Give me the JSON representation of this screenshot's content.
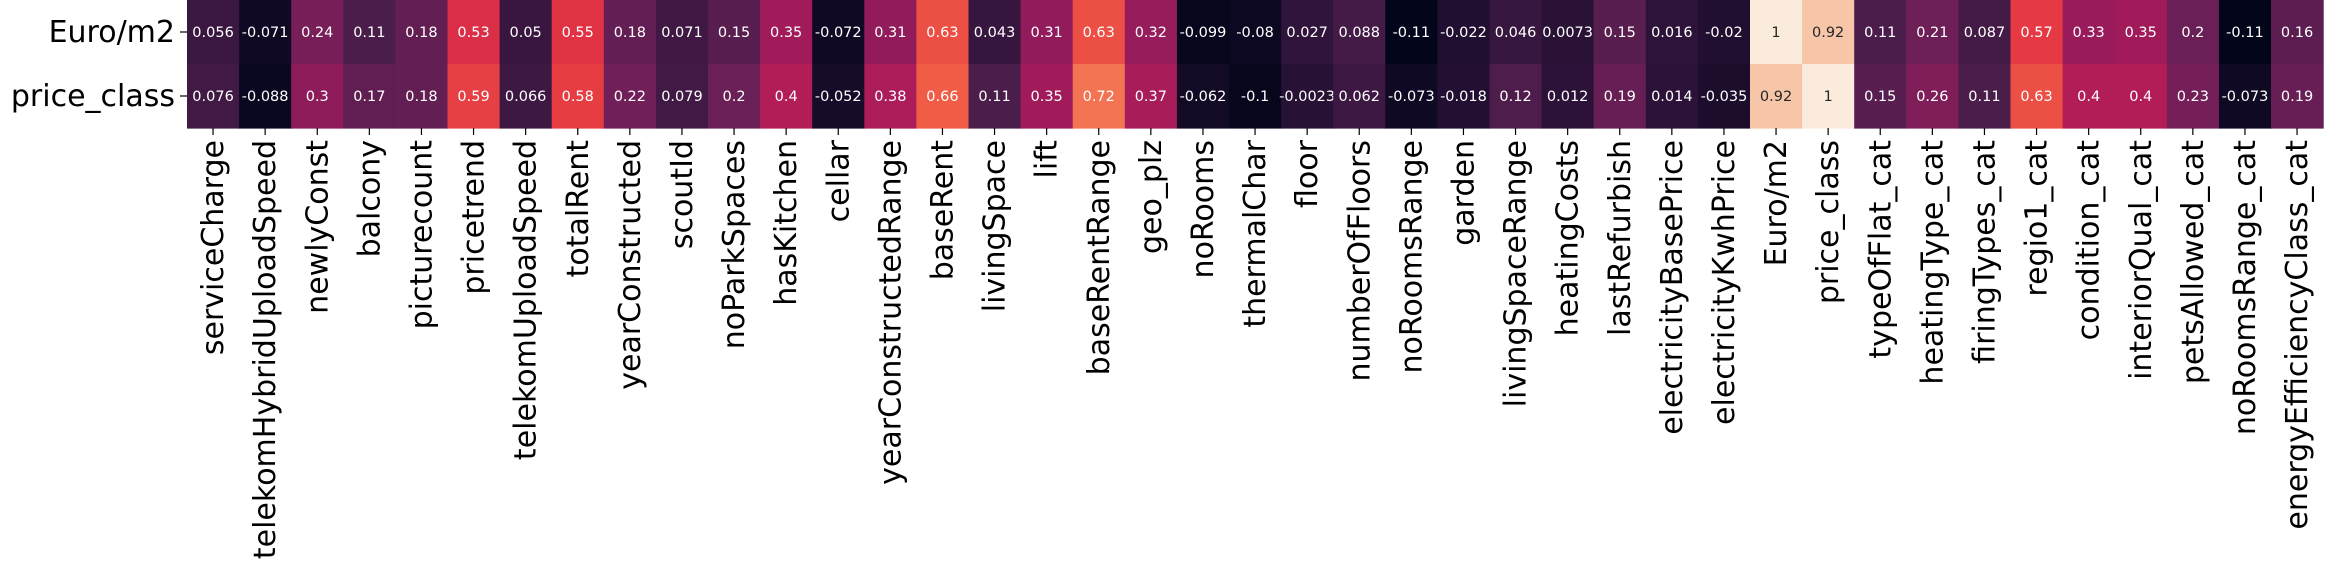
{
  "chart_data": {
    "type": "heatmap",
    "title": "",
    "xlabel": "",
    "ylabel": "",
    "colormap": "rocket",
    "vmin": -0.11,
    "vmax": 1.0,
    "rows": [
      "Euro/m2",
      "price_class"
    ],
    "columns": [
      "serviceCharge",
      "telekomHybridUploadSpeed",
      "newlyConst",
      "balcony",
      "picturecount",
      "pricetrend",
      "telekomUploadSpeed",
      "totalRent",
      "yearConstructed",
      "scoutId",
      "noParkSpaces",
      "hasKitchen",
      "cellar",
      "yearConstructedRange",
      "baseRent",
      "livingSpace",
      "lift",
      "baseRentRange",
      "geo_plz",
      "noRooms",
      "thermalChar",
      "floor",
      "numberOfFloors",
      "noRoomsRange",
      "garden",
      "livingSpaceRange",
      "heatingCosts",
      "lastRefurbish",
      "electricityBasePrice",
      "electricityKwhPrice",
      "Euro/m2",
      "price_class",
      "typeOfFlat_cat",
      "heatingType_cat",
      "firingTypes_cat",
      "regio1_cat",
      "condition_cat",
      "interiorQual_cat",
      "petsAllowed_cat",
      "noRoomsRange_cat",
      "energyEfficiencyClass_cat"
    ],
    "values": [
      [
        0.056,
        -0.071,
        0.24,
        0.11,
        0.18,
        0.53,
        0.05,
        0.55,
        0.18,
        0.071,
        0.15,
        0.35,
        -0.072,
        0.31,
        0.63,
        0.043,
        0.31,
        0.63,
        0.32,
        -0.099,
        -0.08,
        0.027,
        0.088,
        -0.11,
        -0.022,
        0.046,
        0.0073,
        0.15,
        0.016,
        -0.02,
        1,
        0.92,
        0.11,
        0.21,
        0.087,
        0.57,
        0.33,
        0.35,
        0.2,
        -0.11,
        0.16
      ],
      [
        0.076,
        -0.088,
        0.3,
        0.17,
        0.18,
        0.59,
        0.066,
        0.58,
        0.22,
        0.079,
        0.2,
        0.4,
        -0.052,
        0.38,
        0.66,
        0.11,
        0.35,
        0.72,
        0.37,
        -0.062,
        -0.1,
        -0.0023,
        0.062,
        -0.073,
        -0.018,
        0.12,
        0.012,
        0.19,
        0.014,
        -0.035,
        0.92,
        1,
        0.15,
        0.26,
        0.11,
        0.63,
        0.4,
        0.4,
        0.23,
        -0.073,
        0.19
      ]
    ],
    "cell_labels": [
      [
        "0.056",
        "-0.071",
        "0.24",
        "0.11",
        "0.18",
        "0.53",
        "0.05",
        "0.55",
        "0.18",
        "0.071",
        "0.15",
        "0.35",
        "-0.072",
        "0.31",
        "0.63",
        "0.043",
        "0.31",
        "0.63",
        "0.32",
        "-0.099",
        "-0.08",
        "0.027",
        "0.088",
        "-0.11",
        "-0.022",
        "0.046",
        "0.0073",
        "0.15",
        "0.016",
        "-0.02",
        "1",
        "0.92",
        "0.11",
        "0.21",
        "0.087",
        "0.57",
        "0.33",
        "0.35",
        "0.2",
        "-0.11",
        "0.16"
      ],
      [
        "0.076",
        "-0.088",
        "0.3",
        "0.17",
        "0.18",
        "0.59",
        "0.066",
        "0.58",
        "0.22",
        "0.079",
        "0.2",
        "0.4",
        "-0.052",
        "0.38",
        "0.66",
        "0.11",
        "0.35",
        "0.72",
        "0.37",
        "-0.062",
        "-0.1",
        "-0.0023",
        "0.062",
        "-0.073",
        "-0.018",
        "0.12",
        "0.012",
        "0.19",
        "0.014",
        "-0.035",
        "0.92",
        "1",
        "0.15",
        "0.26",
        "0.11",
        "0.63",
        "0.4",
        "0.4",
        "0.23",
        "-0.073",
        "0.19"
      ]
    ],
    "grid": false,
    "legend": "none"
  }
}
